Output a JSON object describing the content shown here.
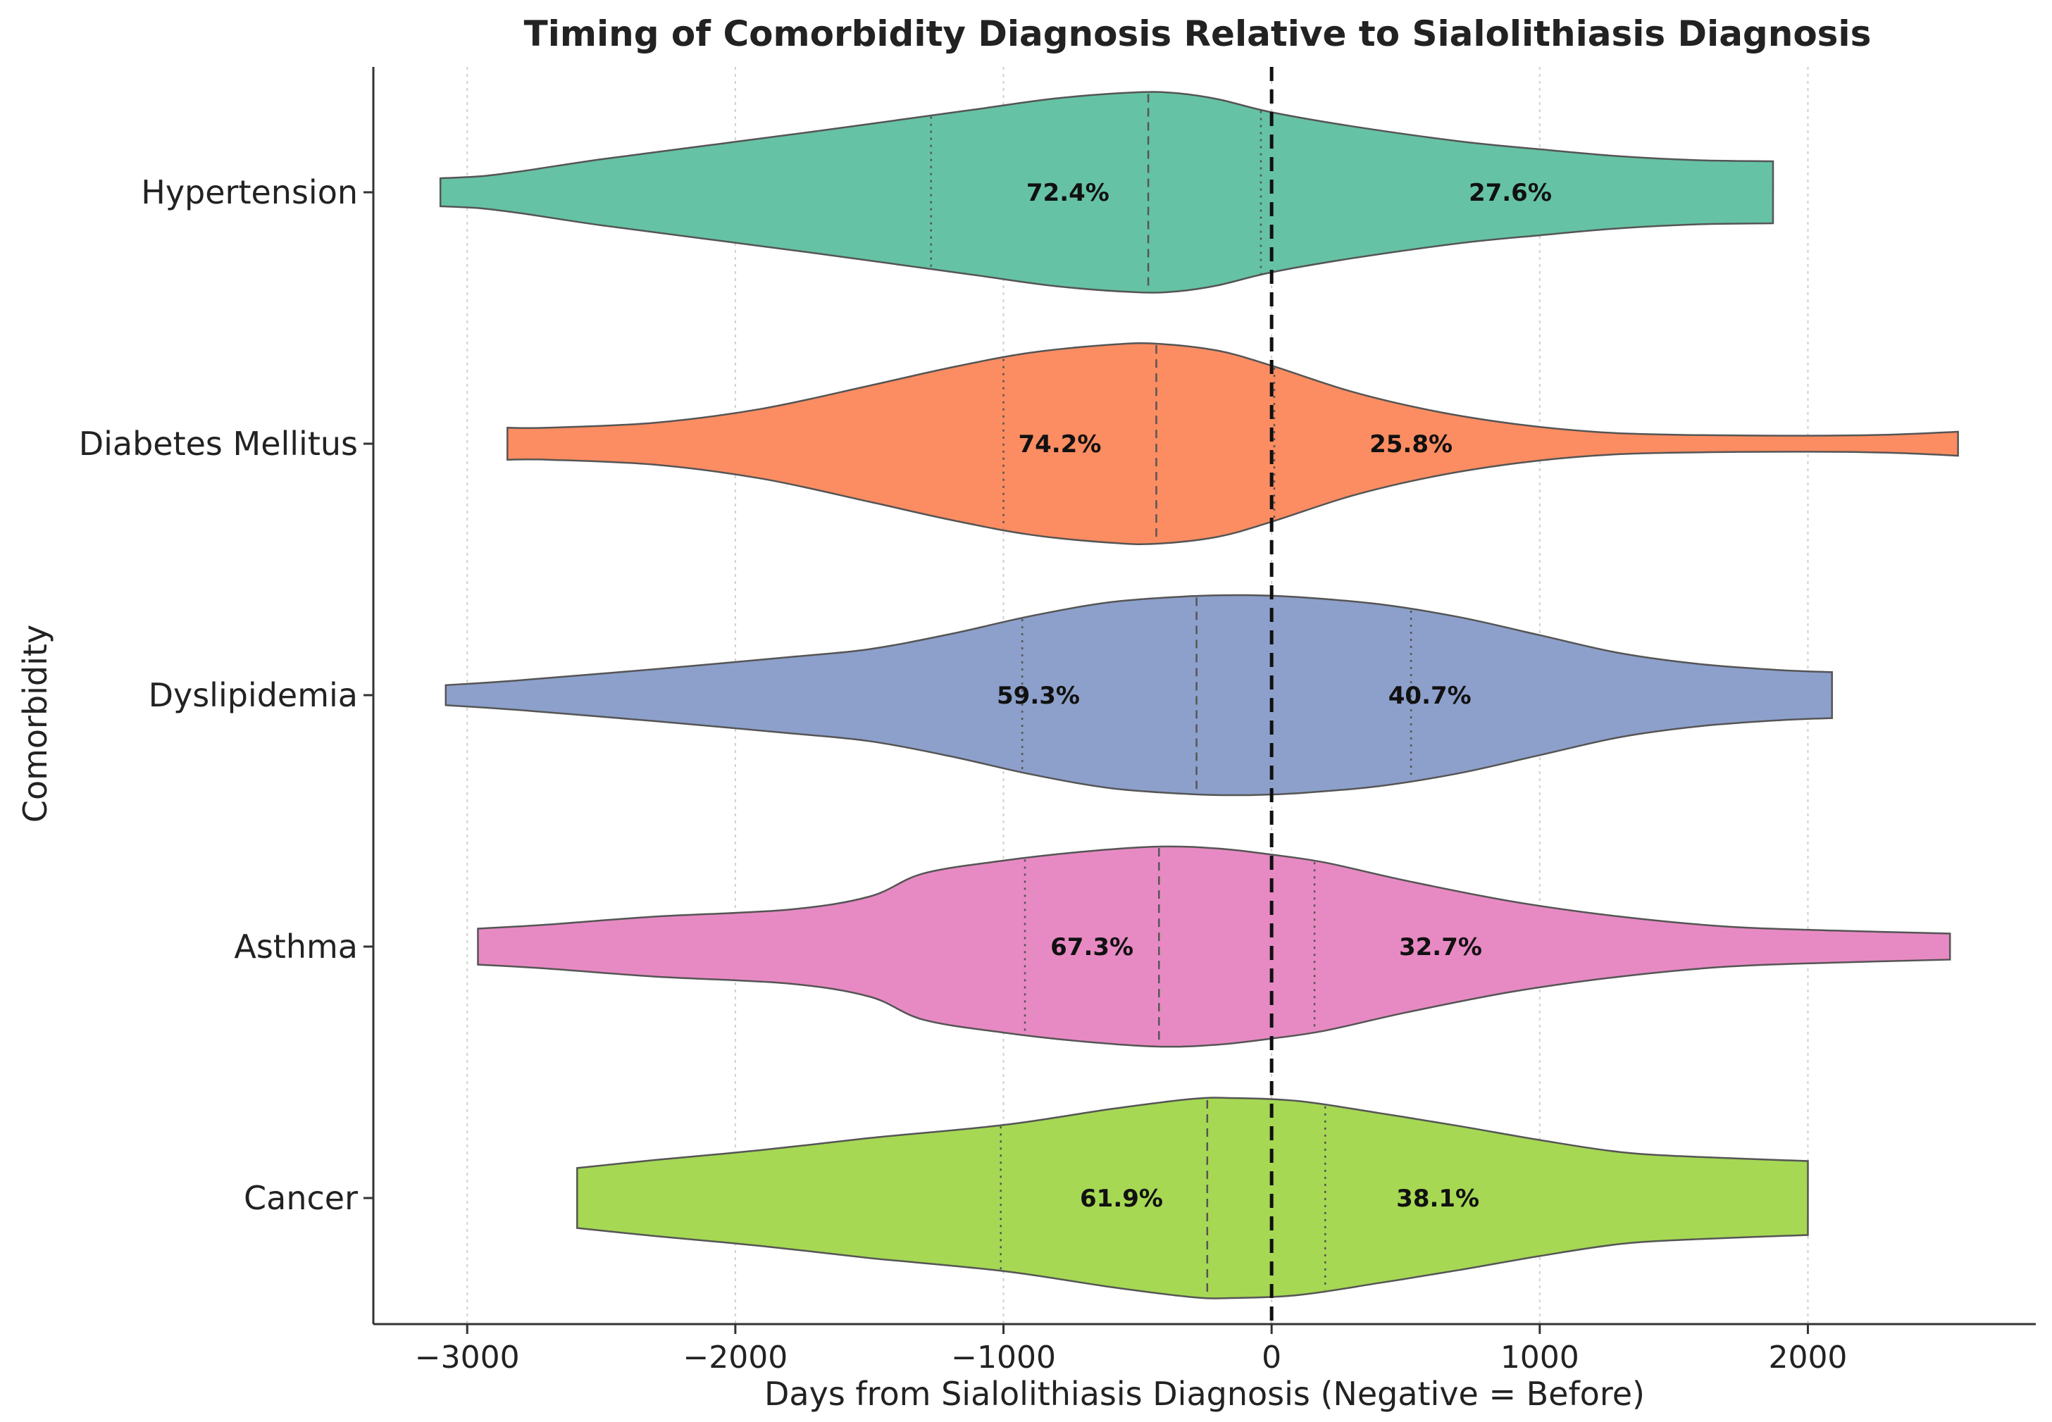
{
  "chart_data": {
    "type": "violin",
    "title": "Timing of Comorbidity Diagnosis Relative to Sialolithiasis Diagnosis",
    "xlabel": "Days from Sialolithiasis Diagnosis (Negative = Before)",
    "ylabel": "Comorbidity",
    "xlim": [
      -3350,
      2850
    ],
    "xticks": [
      -3000,
      -2000,
      -1000,
      0,
      1000,
      2000
    ],
    "xtick_labels": [
      "−3000",
      "−2000",
      "−1000",
      "0",
      "1000",
      "2000"
    ],
    "reference_line": 0,
    "grid": "vertical dotted",
    "categories": [
      {
        "name": "Hypertension",
        "color": "#66c2a5",
        "min": -3100,
        "max": 1870,
        "q1": -1270,
        "median": -460,
        "q3": -40,
        "pct_before": "72.4%",
        "pct_after": "27.6%",
        "pct_before_x": -760,
        "pct_after_x": 890,
        "profile": [
          [
            -3100,
            0.14
          ],
          [
            -2950,
            0.16
          ],
          [
            -2800,
            0.21
          ],
          [
            -2500,
            0.33
          ],
          [
            -2100,
            0.47
          ],
          [
            -1700,
            0.61
          ],
          [
            -1400,
            0.72
          ],
          [
            -1100,
            0.83
          ],
          [
            -800,
            0.94
          ],
          [
            -500,
            1.0
          ],
          [
            -350,
            0.99
          ],
          [
            -200,
            0.93
          ],
          [
            0,
            0.8
          ],
          [
            300,
            0.66
          ],
          [
            700,
            0.51
          ],
          [
            1000,
            0.43
          ],
          [
            1300,
            0.36
          ],
          [
            1600,
            0.32
          ],
          [
            1870,
            0.31
          ]
        ]
      },
      {
        "name": "Diabetes Mellitus",
        "color": "#fc8d62",
        "min": -2850,
        "max": 2560,
        "q1": -1000,
        "median": -430,
        "q3": 10,
        "pct_before": "74.2%",
        "pct_after": "25.8%",
        "pct_before_x": -790,
        "pct_after_x": 520,
        "profile": [
          [
            -2850,
            0.16
          ],
          [
            -2700,
            0.16
          ],
          [
            -2300,
            0.21
          ],
          [
            -1900,
            0.35
          ],
          [
            -1500,
            0.58
          ],
          [
            -1200,
            0.76
          ],
          [
            -900,
            0.91
          ],
          [
            -600,
            0.99
          ],
          [
            -430,
            1.0
          ],
          [
            -200,
            0.93
          ],
          [
            0,
            0.78
          ],
          [
            300,
            0.52
          ],
          [
            600,
            0.33
          ],
          [
            900,
            0.2
          ],
          [
            1200,
            0.12
          ],
          [
            1500,
            0.09
          ],
          [
            2000,
            0.08
          ],
          [
            2300,
            0.09
          ],
          [
            2560,
            0.12
          ]
        ]
      },
      {
        "name": "Dyslipidemia",
        "color": "#8da0cb",
        "min": -3080,
        "max": 2090,
        "q1": -930,
        "median": -280,
        "q3": 520,
        "pct_before": "59.3%",
        "pct_after": "40.7%",
        "pct_before_x": -870,
        "pct_after_x": 590,
        "profile": [
          [
            -3080,
            0.1
          ],
          [
            -2800,
            0.15
          ],
          [
            -2300,
            0.26
          ],
          [
            -1800,
            0.38
          ],
          [
            -1500,
            0.46
          ],
          [
            -1200,
            0.61
          ],
          [
            -900,
            0.79
          ],
          [
            -600,
            0.93
          ],
          [
            -300,
            0.99
          ],
          [
            -100,
            1.0
          ],
          [
            100,
            0.98
          ],
          [
            400,
            0.91
          ],
          [
            700,
            0.78
          ],
          [
            1000,
            0.6
          ],
          [
            1300,
            0.42
          ],
          [
            1600,
            0.31
          ],
          [
            1900,
            0.25
          ],
          [
            2090,
            0.23
          ]
        ]
      },
      {
        "name": "Asthma",
        "color": "#e78ac3",
        "min": -2960,
        "max": 2530,
        "q1": -920,
        "median": -420,
        "q3": 160,
        "pct_before": "67.3%",
        "pct_after": "32.7%",
        "pct_before_x": -670,
        "pct_after_x": 630,
        "profile": [
          [
            -2960,
            0.18
          ],
          [
            -2700,
            0.22
          ],
          [
            -2300,
            0.3
          ],
          [
            -1800,
            0.37
          ],
          [
            -1500,
            0.5
          ],
          [
            -1300,
            0.73
          ],
          [
            -1000,
            0.86
          ],
          [
            -700,
            0.95
          ],
          [
            -420,
            1.0
          ],
          [
            -200,
            0.98
          ],
          [
            0,
            0.92
          ],
          [
            200,
            0.84
          ],
          [
            500,
            0.66
          ],
          [
            900,
            0.45
          ],
          [
            1300,
            0.3
          ],
          [
            1700,
            0.2
          ],
          [
            2100,
            0.16
          ],
          [
            2530,
            0.13
          ]
        ]
      },
      {
        "name": "Cancer",
        "color": "#a6d854",
        "min": -2590,
        "max": 2000,
        "q1": -1010,
        "median": -240,
        "q3": 200,
        "pct_before": "61.9%",
        "pct_after": "38.1%",
        "pct_before_x": -560,
        "pct_after_x": 620,
        "profile": [
          [
            -2590,
            0.3
          ],
          [
            -2300,
            0.38
          ],
          [
            -1900,
            0.48
          ],
          [
            -1500,
            0.6
          ],
          [
            -1000,
            0.73
          ],
          [
            -600,
            0.89
          ],
          [
            -300,
            0.99
          ],
          [
            -150,
            1.0
          ],
          [
            100,
            0.97
          ],
          [
            400,
            0.85
          ],
          [
            700,
            0.72
          ],
          [
            1000,
            0.58
          ],
          [
            1300,
            0.46
          ],
          [
            1600,
            0.41
          ],
          [
            2000,
            0.37
          ]
        ]
      }
    ]
  }
}
